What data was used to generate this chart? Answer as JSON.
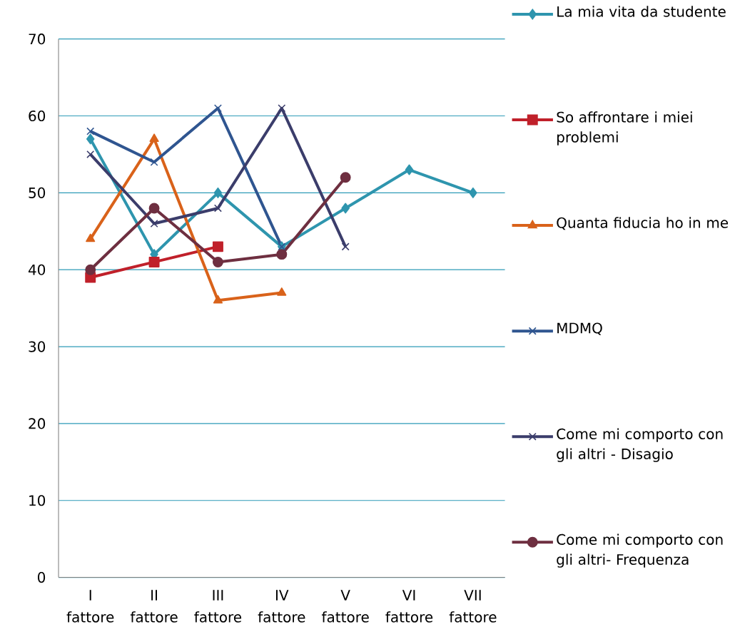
{
  "chart_data": {
    "type": "line",
    "categories": [
      "I fattore",
      "II fattore",
      "III fattore",
      "IV fattore",
      "V fattore",
      "VI fattore",
      "VII fattore"
    ],
    "series": [
      {
        "name": "La mia vita da studente",
        "color": "#2e95ae",
        "marker": "diamond",
        "values": [
          57,
          42,
          50,
          43,
          48,
          53,
          50
        ]
      },
      {
        "name": "So affrontare i miei problemi",
        "color": "#c0202a",
        "marker": "square",
        "values": [
          39,
          41,
          43,
          null,
          null,
          null,
          null
        ]
      },
      {
        "name": "Quanta fiducia ho in me",
        "color": "#d9621a",
        "marker": "triangle",
        "values": [
          44,
          57,
          36,
          37,
          null,
          null,
          null
        ]
      },
      {
        "name": "MDMQ",
        "color": "#2f5590",
        "marker": "cross",
        "values": [
          58,
          54,
          61,
          43,
          null,
          null,
          null
        ]
      },
      {
        "name": "Come mi comporto con gli altri - Disagio",
        "color": "#3b3d6b",
        "marker": "cross",
        "values": [
          55,
          46,
          48,
          61,
          43,
          null,
          null
        ]
      },
      {
        "name": "Come mi comporto con gli altri- Frequenza",
        "color": "#6e2f40",
        "marker": "circle",
        "values": [
          40,
          48,
          41,
          42,
          52,
          null,
          null
        ]
      }
    ],
    "ylim": [
      0,
      70
    ],
    "yticks": [
      0,
      10,
      20,
      30,
      40,
      50,
      60,
      70
    ],
    "grid": "y",
    "legend": "right"
  }
}
